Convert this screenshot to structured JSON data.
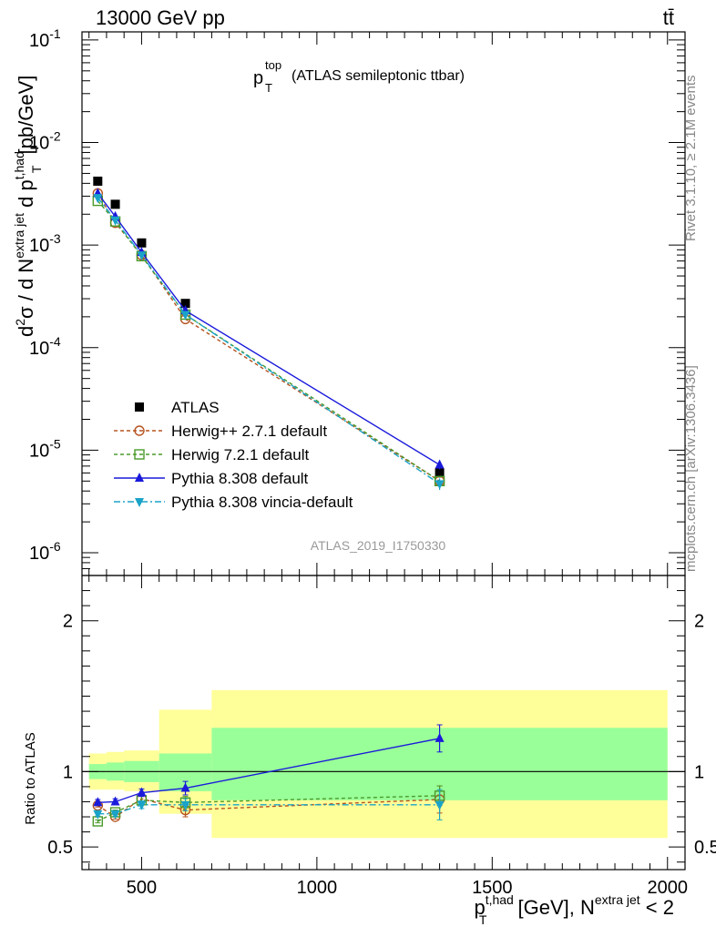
{
  "header": {
    "energy_label": "13000 GeV pp",
    "process_label": "tt̄"
  },
  "side_labels": {
    "rivet": "Rivet 3.1.10, ≥ 2.1M events",
    "mcplots": "mcplots.cern.ch [arXiv:1306.3436]"
  },
  "plot_title": {
    "main": "p",
    "sup": "top",
    "sub": "T",
    "suffix": "(ATLAS semileptonic ttbar)"
  },
  "analysis_id": "ATLAS_2019_I1750330",
  "colors": {
    "data": "#000000",
    "herwigpp": "#b5531e",
    "herwig7": "#4a9a2a",
    "pythia": "#1a1adb",
    "vincia": "#1aa3c8",
    "band_outer": "#ffff99",
    "band_inner": "#99ff99"
  },
  "chart_data": [
    {
      "type": "scatter",
      "panel": "main",
      "yscale": "log",
      "xlim": [
        330,
        2050
      ],
      "ylim": [
        6e-07,
        0.12
      ],
      "ylabel_parts": [
        "d",
        "2",
        "σ / d N",
        "extra jet",
        " d p",
        "t,had",
        "T",
        " [pb/GeV]"
      ],
      "ytick_labels": [
        {
          "base": "10",
          "exp": "-6",
          "v": 1e-06
        },
        {
          "base": "10",
          "exp": "-5",
          "v": 1e-05
        },
        {
          "base": "10",
          "exp": "-4",
          "v": 0.0001
        },
        {
          "base": "10",
          "exp": "-3",
          "v": 0.001
        },
        {
          "base": "10",
          "exp": "-2",
          "v": 0.01
        },
        {
          "base": "10",
          "exp": "-1",
          "v": 0.1
        }
      ],
      "x": [
        375,
        425,
        500,
        625,
        1350
      ],
      "series": [
        {
          "name": "ATLAS",
          "key": "data",
          "marker": "square-filled",
          "values": [
            0.0042,
            0.0025,
            0.00105,
            0.00027,
            6e-06
          ],
          "errors": [
            0.0001,
            6e-05,
            3e-05,
            1e-05,
            5e-07
          ]
        },
        {
          "name": "Herwig++ 2.7.1 default",
          "key": "herwigpp",
          "marker": "circle-open",
          "dash": "4,3",
          "values": [
            0.0032,
            0.00165,
            0.0008,
            0.00019,
            5e-06
          ]
        },
        {
          "name": "Herwig 7.2.1 default",
          "key": "herwig7",
          "marker": "square-open",
          "dash": "4,3",
          "values": [
            0.0027,
            0.0017,
            0.00078,
            0.00021,
            5e-06
          ]
        },
        {
          "name": "Pythia 8.308 default",
          "key": "pythia",
          "marker": "triangle-up-filled",
          "dash": "",
          "values": [
            0.0032,
            0.0019,
            0.00085,
            0.00023,
            7.2e-06
          ],
          "errors": [
            5e-05,
            3e-05,
            2e-05,
            6e-06,
            7e-07
          ]
        },
        {
          "name": "Pythia 8.308 vincia-default",
          "key": "vincia",
          "marker": "triangle-down-filled",
          "dash": "7,3,2,3",
          "values": [
            0.0029,
            0.00175,
            0.0008,
            0.00021,
            4.7e-06
          ],
          "errors": [
            0,
            0,
            0,
            0,
            6e-07
          ]
        }
      ]
    },
    {
      "type": "scatter",
      "panel": "ratio",
      "yscale": "linear",
      "xlim": [
        330,
        2050
      ],
      "ylim": [
        0.35,
        2.3
      ],
      "ylabel": "Ratio to ATLAS",
      "yticks": [
        0.5,
        1,
        2
      ],
      "ytick_labels": [
        "0.5",
        "1",
        "2"
      ],
      "xticks": [
        500,
        1000,
        1500,
        2000
      ],
      "xtick_labels": [
        "500",
        "1000",
        "1500",
        "2000"
      ],
      "xlabel_parts": [
        "p",
        "t,had",
        "T",
        " [GeV], N",
        "extra jet",
        " < 2"
      ],
      "bands": [
        {
          "xmin": 350,
          "xmax": 400,
          "outer": [
            0.88,
            1.12
          ],
          "inner": [
            0.95,
            1.05
          ]
        },
        {
          "xmin": 400,
          "xmax": 450,
          "outer": [
            0.88,
            1.13
          ],
          "inner": [
            0.94,
            1.06
          ]
        },
        {
          "xmin": 450,
          "xmax": 550,
          "outer": [
            0.87,
            1.14
          ],
          "inner": [
            0.93,
            1.07
          ]
        },
        {
          "xmin": 550,
          "xmax": 700,
          "outer": [
            0.72,
            1.41
          ],
          "inner": [
            0.87,
            1.12
          ]
        },
        {
          "xmin": 700,
          "xmax": 2000,
          "outer": [
            0.56,
            1.54
          ],
          "inner": [
            0.81,
            1.29
          ]
        }
      ],
      "x": [
        375,
        425,
        500,
        625,
        1350
      ],
      "series": [
        {
          "name": "Herwig++ 2.7.1 default",
          "key": "herwigpp",
          "values": [
            0.775,
            0.7,
            0.82,
            0.745,
            0.815
          ],
          "errors": [
            0.01,
            0.015,
            0.02,
            0.045,
            0.09
          ]
        },
        {
          "name": "Herwig 7.2.1 default",
          "key": "herwig7",
          "values": [
            0.67,
            0.73,
            0.81,
            0.795,
            0.84
          ],
          "errors": [
            0.01,
            0.015,
            0.025,
            0.04,
            0.065
          ]
        },
        {
          "name": "Pythia 8.308 default",
          "key": "pythia",
          "values": [
            0.795,
            0.8,
            0.86,
            0.89,
            1.22
          ],
          "errors": [
            0.02,
            0.02,
            0.025,
            0.045,
            0.09
          ]
        },
        {
          "name": "Pythia 8.308 vincia-default",
          "key": "vincia",
          "values": [
            0.72,
            0.72,
            0.78,
            0.78,
            0.78
          ],
          "errors": [
            0.015,
            0.015,
            0.025,
            0.04,
            0.1
          ]
        }
      ]
    }
  ]
}
